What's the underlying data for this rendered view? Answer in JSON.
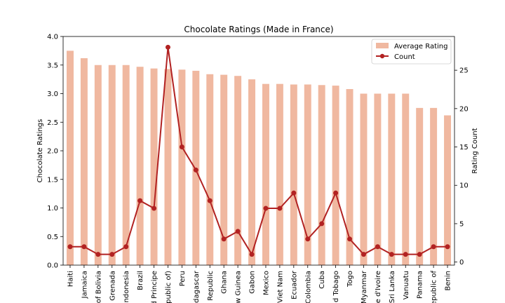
{
  "chart_data": {
    "type": "bar",
    "title": "Chocolate Ratings (Made in France)",
    "xlabel": "",
    "ylabel": "Chocolate Ratings",
    "ylabel_right": "Rating Count",
    "ylim": [
      0,
      4.0
    ],
    "ylim_right": [
      -0.4,
      29.4
    ],
    "yticks": [
      "0.0",
      "0.5",
      "1.0",
      "1.5",
      "2.0",
      "2.5",
      "3.0",
      "3.5",
      "4.0"
    ],
    "yticks_right": [
      "0",
      "5",
      "10",
      "15",
      "20",
      "25"
    ],
    "legend_position": "top-right",
    "categories": [
      "Haiti",
      "Jamaica",
      "of Bolivia",
      "Grenada",
      "ndonesia",
      "Brazil",
      "d Principe",
      "public of)",
      "Peru",
      "dagascar",
      "Republic",
      "Ghana",
      "w Guinea",
      "Gabon",
      "Mexico",
      "Viet Nam",
      "Ecuador",
      "Colombia",
      "Cuba",
      "d Tobago",
      "Togo",
      "Myanmar",
      "e d'Ivoire",
      "Sri Lanka",
      "Vanuatu",
      "Panama",
      "epublic of",
      "Benin"
    ],
    "series": [
      {
        "name": "Average Rating",
        "kind": "bar",
        "axis": "left",
        "color": "#f0b8a0",
        "values": [
          3.75,
          3.62,
          3.5,
          3.5,
          3.5,
          3.47,
          3.44,
          3.43,
          3.42,
          3.4,
          3.34,
          3.33,
          3.31,
          3.25,
          3.17,
          3.17,
          3.16,
          3.16,
          3.15,
          3.14,
          3.08,
          3.0,
          3.0,
          3.0,
          3.0,
          2.75,
          2.75,
          2.62
        ]
      },
      {
        "name": "Count",
        "kind": "line",
        "axis": "right",
        "color": "#b22222",
        "values": [
          2,
          2,
          1,
          1,
          2,
          8,
          7,
          28,
          15,
          12,
          8,
          3,
          4,
          1,
          7,
          7,
          9,
          3,
          5,
          9,
          3,
          1,
          2,
          1,
          1,
          1,
          2,
          2
        ]
      }
    ]
  }
}
